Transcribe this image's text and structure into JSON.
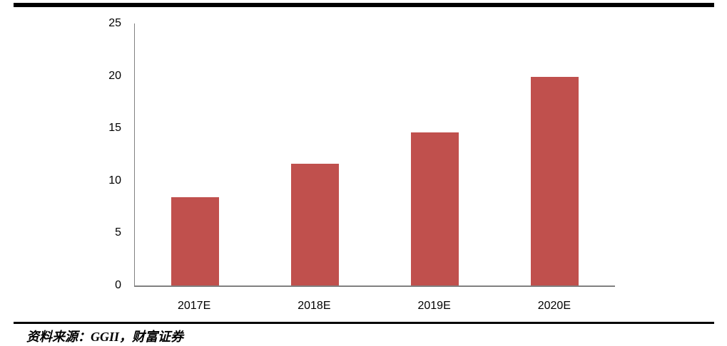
{
  "chart_data": {
    "type": "bar",
    "categories": [
      "2017E",
      "2018E",
      "2019E",
      "2020E"
    ],
    "values": [
      8.4,
      11.6,
      14.6,
      19.9
    ],
    "title": "",
    "xlabel": "",
    "ylabel": "",
    "ylim": [
      0,
      25
    ],
    "yticks": [
      0,
      5,
      10,
      15,
      20,
      25
    ],
    "bar_color": "#c0504d",
    "axis_color": "#808080",
    "grid": false,
    "legend": false
  },
  "rules": {
    "top_rule_color": "#000000",
    "divider_color": "#000000"
  },
  "footer": {
    "source_text": "资料来源：GGII，财富证券"
  }
}
